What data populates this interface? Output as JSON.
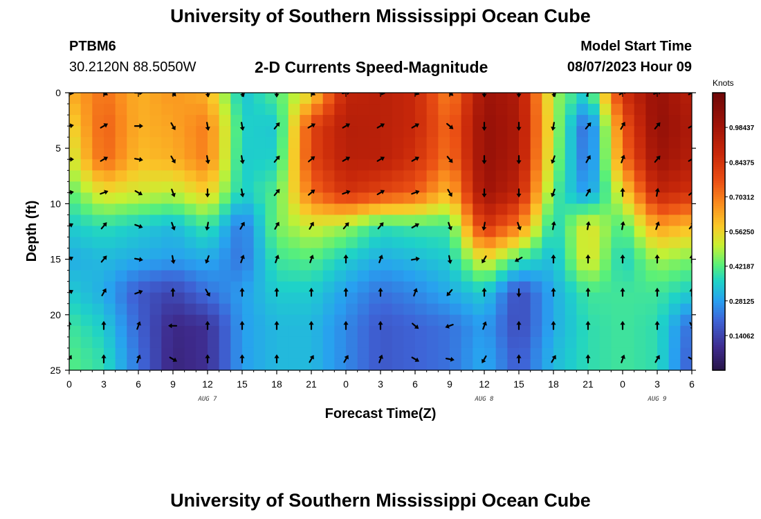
{
  "header": {
    "title": "University of Southern Mississippi Ocean Cube",
    "station": "PTBM6",
    "coords": "30.2120N  88.5050W",
    "subtitle": "2-D Currents Speed-Magnitude",
    "model_start_label": "Model Start Time",
    "model_start_value": "08/07/2023 Hour 09"
  },
  "footer": {
    "title": "University of Southern Mississippi Ocean Cube"
  },
  "chart_data": {
    "type": "heatmap",
    "xlabel": "Forecast Time(Z)",
    "ylabel": "Depth (ft)",
    "x_ticks": [
      "0",
      "3",
      "6",
      "9",
      "12",
      "15",
      "18",
      "21",
      "0",
      "3",
      "6",
      "9",
      "12",
      "15",
      "18",
      "21",
      "0",
      "3",
      "6"
    ],
    "date_labels": [
      {
        "label": "AUG 7",
        "at_tick": 4
      },
      {
        "label": "AUG 8",
        "at_tick": 12
      },
      {
        "label": "AUG 9",
        "at_tick": 17
      }
    ],
    "y_ticks": [
      0,
      5,
      10,
      15,
      20,
      25
    ],
    "ylim": [
      0,
      25
    ],
    "colorbar": {
      "title": "Knots",
      "labels": [
        "0.98437",
        "0.84375",
        "0.70312",
        "0.56250",
        "0.42187",
        "0.28125",
        "0.14062"
      ],
      "label_values": [
        0.98437,
        0.84375,
        0.70312,
        0.5625,
        0.42187,
        0.28125,
        0.14062
      ],
      "range": [
        0,
        1.125
      ]
    },
    "times_hours": [
      0,
      3,
      6,
      9,
      12,
      15,
      18,
      21,
      24,
      27,
      30,
      33,
      36,
      39,
      42,
      45,
      48,
      51,
      54
    ],
    "depths_ft": [
      0,
      3,
      6,
      9,
      12,
      15,
      18,
      21,
      24
    ],
    "speed_knots": [
      [
        0.62,
        0.72,
        0.62,
        0.66,
        0.62,
        0.33,
        0.42,
        0.55,
        0.9,
        0.92,
        0.88,
        0.68,
        1.0,
        0.95,
        0.48,
        0.35,
        0.85,
        1.02,
        0.92
      ],
      [
        0.55,
        0.75,
        0.62,
        0.64,
        0.7,
        0.36,
        0.34,
        0.8,
        0.93,
        0.92,
        0.88,
        0.72,
        1.02,
        0.96,
        0.5,
        0.18,
        0.75,
        1.03,
        0.95
      ],
      [
        0.5,
        0.74,
        0.6,
        0.62,
        0.7,
        0.35,
        0.36,
        0.8,
        0.92,
        0.92,
        0.85,
        0.7,
        1.02,
        0.95,
        0.48,
        0.2,
        0.7,
        1.0,
        0.93
      ],
      [
        0.42,
        0.55,
        0.52,
        0.5,
        0.58,
        0.35,
        0.42,
        0.72,
        0.85,
        0.8,
        0.75,
        0.6,
        1.0,
        0.9,
        0.42,
        0.26,
        0.55,
        0.9,
        0.85
      ],
      [
        0.35,
        0.38,
        0.35,
        0.32,
        0.4,
        0.22,
        0.45,
        0.52,
        0.48,
        0.38,
        0.4,
        0.4,
        0.85,
        0.7,
        0.35,
        0.55,
        0.4,
        0.65,
        0.6
      ],
      [
        0.3,
        0.32,
        0.3,
        0.28,
        0.3,
        0.22,
        0.4,
        0.42,
        0.35,
        0.3,
        0.32,
        0.35,
        0.55,
        0.4,
        0.32,
        0.55,
        0.35,
        0.48,
        0.45
      ],
      [
        0.35,
        0.3,
        0.18,
        0.14,
        0.22,
        0.28,
        0.35,
        0.35,
        0.28,
        0.22,
        0.25,
        0.3,
        0.35,
        0.15,
        0.3,
        0.4,
        0.4,
        0.4,
        0.35
      ],
      [
        0.4,
        0.35,
        0.2,
        0.08,
        0.1,
        0.28,
        0.32,
        0.32,
        0.25,
        0.18,
        0.2,
        0.22,
        0.28,
        0.15,
        0.3,
        0.38,
        0.4,
        0.38,
        0.2
      ],
      [
        0.42,
        0.38,
        0.22,
        0.07,
        0.1,
        0.28,
        0.32,
        0.32,
        0.25,
        0.18,
        0.2,
        0.22,
        0.3,
        0.18,
        0.32,
        0.38,
        0.4,
        0.38,
        0.18
      ]
    ],
    "direction_deg": [
      [
        100,
        120,
        90,
        140,
        170,
        160,
        180,
        120,
        80,
        100,
        110,
        130,
        180,
        180,
        160,
        20,
        60,
        70,
        60
      ],
      [
        80,
        60,
        90,
        150,
        170,
        170,
        40,
        60,
        60,
        60,
        60,
        130,
        180,
        180,
        190,
        40,
        30,
        40,
        60
      ],
      [
        90,
        60,
        100,
        150,
        170,
        170,
        40,
        50,
        60,
        60,
        60,
        140,
        180,
        180,
        200,
        30,
        20,
        40,
        60
      ],
      [
        80,
        70,
        120,
        160,
        180,
        170,
        40,
        50,
        70,
        60,
        70,
        150,
        180,
        180,
        200,
        30,
        0,
        10,
        50
      ],
      [
        60,
        40,
        110,
        160,
        190,
        30,
        30,
        30,
        40,
        40,
        60,
        160,
        190,
        160,
        10,
        10,
        10,
        20,
        40
      ],
      [
        60,
        40,
        100,
        170,
        200,
        20,
        20,
        20,
        0,
        20,
        80,
        170,
        210,
        240,
        0,
        0,
        0,
        0,
        0
      ],
      [
        60,
        30,
        70,
        0,
        150,
        0,
        0,
        0,
        0,
        0,
        20,
        220,
        0,
        180,
        0,
        0,
        0,
        0,
        0
      ],
      [
        0,
        0,
        20,
        270,
        0,
        0,
        0,
        0,
        0,
        0,
        130,
        250,
        20,
        0,
        0,
        0,
        0,
        0,
        150
      ],
      [
        30,
        0,
        20,
        120,
        0,
        0,
        0,
        30,
        30,
        20,
        120,
        100,
        210,
        0,
        30,
        0,
        20,
        30,
        120
      ]
    ]
  }
}
